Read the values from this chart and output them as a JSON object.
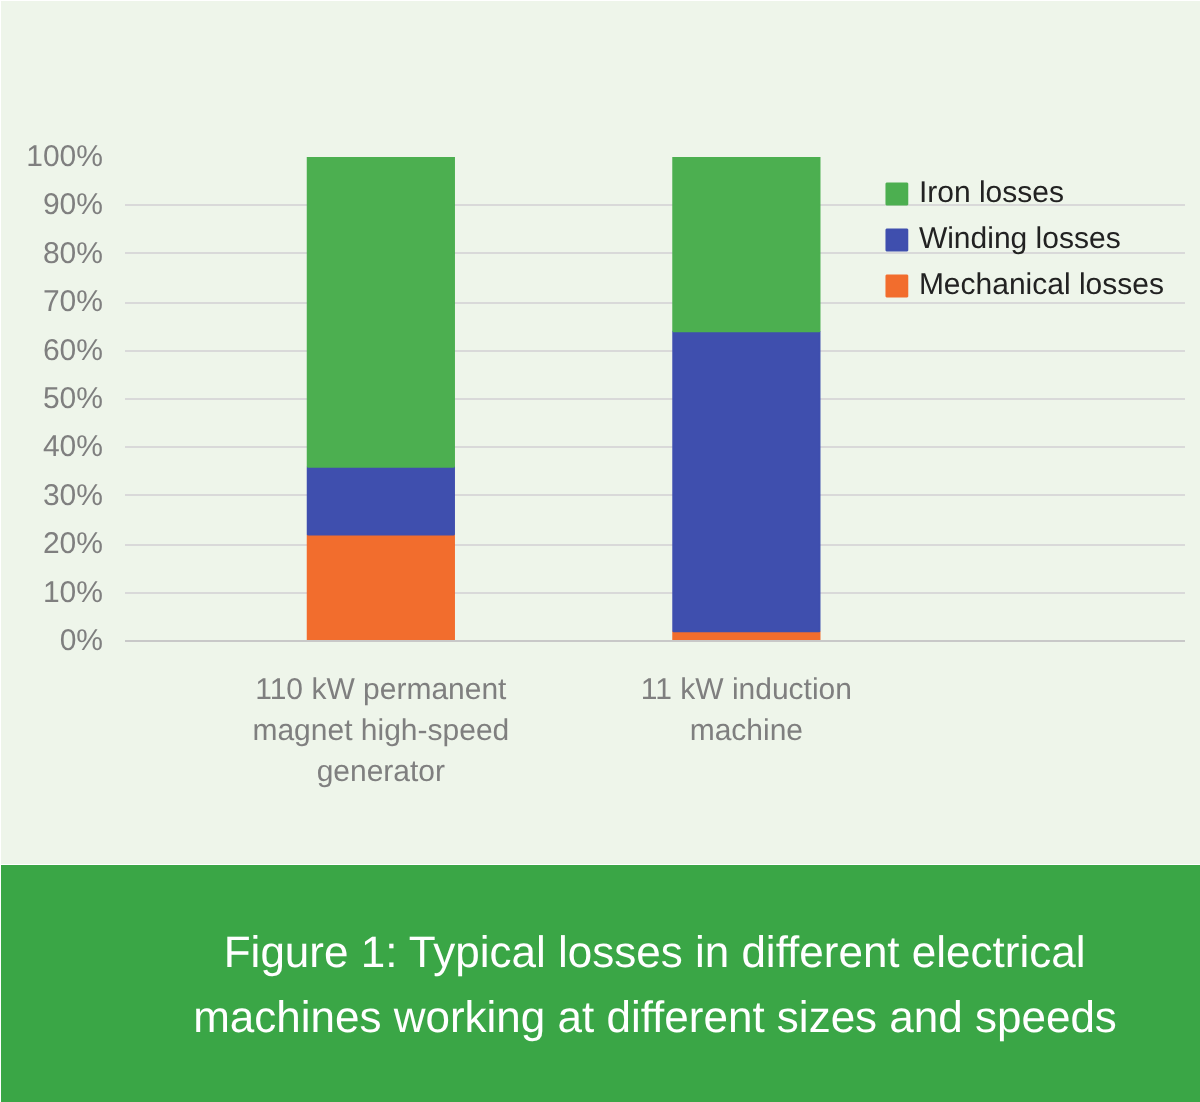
{
  "chart_data": {
    "type": "bar",
    "stacked": true,
    "title": "Figure 1: Typical losses in different electrical machines working at different sizes and speeds",
    "categories": [
      "110 kW permanent magnet high-speed generator",
      "11 kW induction machine"
    ],
    "series": [
      {
        "name": "Mechanical losses",
        "color": "#f26d2d",
        "values": [
          22,
          2
        ]
      },
      {
        "name": "Winding losses",
        "color": "#3f4fae",
        "values": [
          14,
          62
        ]
      },
      {
        "name": "Iron losses",
        "color": "#4caf50",
        "values": [
          64,
          36
        ]
      }
    ],
    "ylim": [
      0,
      100
    ],
    "yticks": [
      {
        "value": 0,
        "label": "0%"
      },
      {
        "value": 10,
        "label": "10%"
      },
      {
        "value": 20,
        "label": "20%"
      },
      {
        "value": 30,
        "label": "30%"
      },
      {
        "value": 40,
        "label": "40%"
      },
      {
        "value": 50,
        "label": "50%"
      },
      {
        "value": 60,
        "label": "60%"
      },
      {
        "value": 70,
        "label": "70%"
      },
      {
        "value": 80,
        "label": "80%"
      },
      {
        "value": 90,
        "label": "90%"
      },
      {
        "value": 100,
        "label": "100%"
      }
    ],
    "grid": "y",
    "legend": "top right"
  }
}
